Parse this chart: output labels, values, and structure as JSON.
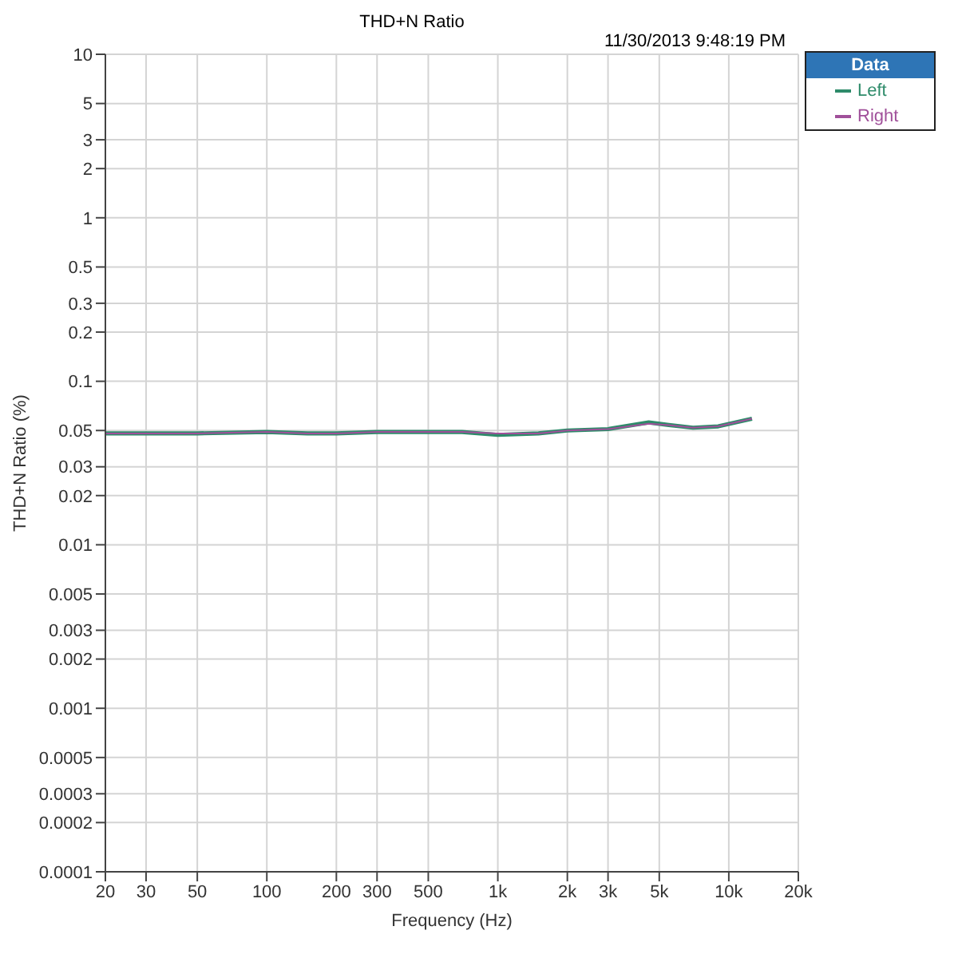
{
  "chart_data": {
    "type": "line",
    "title": "THD+N Ratio",
    "xlabel": "Frequency (Hz)",
    "ylabel": "THD+N Ratio (%)",
    "annotations": [
      "11/30/2013 9:48:19 PM"
    ],
    "legend_title": "Data",
    "legend": "top right",
    "log": "xy",
    "grid": true,
    "marker": "none",
    "line_style": "solid",
    "x": [
      20,
      50,
      100,
      150,
      200,
      300,
      500,
      700,
      1000,
      1500,
      2000,
      3000,
      4500,
      5500,
      7000,
      9000,
      12600
    ],
    "series": [
      {
        "name": "Left",
        "color": "#2e8b6a",
        "values": [
          0.048,
          0.048,
          0.049,
          0.048,
          0.048,
          0.049,
          0.049,
          0.049,
          0.047,
          0.048,
          0.05,
          0.051,
          0.056,
          0.054,
          0.052,
          0.053,
          0.059
        ]
      },
      {
        "name": "Right",
        "color": "#a0509a",
        "values": [
          0.048,
          0.048,
          0.049,
          0.048,
          0.048,
          0.049,
          0.049,
          0.049,
          0.048,
          0.048,
          0.05,
          0.051,
          0.055,
          0.054,
          0.052,
          0.053,
          0.059
        ]
      }
    ],
    "xlim": [
      20,
      20000
    ],
    "ylim": [
      0.0001,
      10
    ],
    "xticks": [
      20,
      30,
      50,
      100,
      200,
      300,
      500,
      {
        "value": 1000,
        "label": "1k"
      },
      {
        "value": 2000,
        "label": "2k"
      },
      {
        "value": 3000,
        "label": "3k"
      },
      {
        "value": 5000,
        "label": "5k"
      },
      {
        "value": 10000,
        "label": "10k"
      },
      {
        "value": 20000,
        "label": "20k"
      }
    ],
    "yticks": [
      0.0001,
      0.0002,
      0.0003,
      0.0005,
      0.001,
      0.002,
      0.003,
      0.005,
      0.01,
      0.02,
      0.03,
      0.05,
      0.1,
      0.2,
      0.3,
      0.5,
      1,
      2,
      3,
      5,
      10
    ]
  }
}
